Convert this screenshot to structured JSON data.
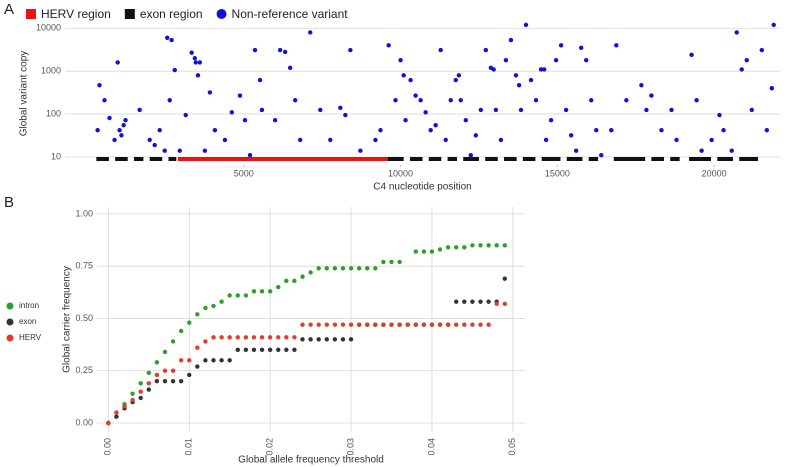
{
  "chart_data": [
    {
      "type": "scatter",
      "panel": "A",
      "xlabel": "C4 nucleotide position",
      "ylabel": "Global variant copy",
      "xlim": [
        -700,
        22100
      ],
      "ylim": [
        6.5,
        14000
      ],
      "log_y": true,
      "grid": "y",
      "legend": "top",
      "xticks": [
        5000,
        10000,
        15000,
        20000
      ],
      "yticks": [
        10,
        100,
        1000,
        10000
      ],
      "regions": [
        {
          "name": "HERV region",
          "color": "#ee1111",
          "ranges": [
            [
              2900,
              9600
            ]
          ]
        },
        {
          "name": "exon region",
          "color": "#111111",
          "ranges": [
            [
              300,
              700
            ],
            [
              900,
              1300
            ],
            [
              1500,
              1800
            ],
            [
              2000,
              2400
            ],
            [
              2600,
              2850
            ],
            [
              9600,
              10100
            ],
            [
              10300,
              10700
            ],
            [
              10900,
              11300
            ],
            [
              11500,
              11800
            ],
            [
              12000,
              12500
            ],
            [
              12700,
              13100
            ],
            [
              13300,
              13700
            ],
            [
              13900,
              14300
            ],
            [
              14500,
              15100
            ],
            [
              15300,
              15800
            ],
            [
              16000,
              16300
            ],
            [
              16800,
              17800
            ],
            [
              18000,
              18400
            ],
            [
              18600,
              18900
            ],
            [
              19200,
              19900
            ],
            [
              20100,
              20600
            ],
            [
              20800,
              21400
            ]
          ]
        }
      ],
      "series": [
        {
          "name": "Non-reference variant",
          "color": "#1010dd",
          "x": [
            340,
            400,
            560,
            720,
            980,
            1040,
            1100,
            1170,
            1230,
            880,
            1680,
            2000,
            2160,
            2320,
            2480,
            2560,
            2700,
            2800,
            2640,
            2960,
            3150,
            3340,
            3440,
            3470,
            3600,
            3540,
            3920,
            4080,
            3760,
            4400,
            4620,
            4880,
            5040,
            5200,
            5360,
            5520,
            5580,
            6000,
            6160,
            6320,
            6480,
            6640,
            7120,
            6800,
            7440,
            7760,
            8080,
            8240,
            8400,
            8720,
            9200,
            9360,
            9620,
            9840,
            10000,
            10100,
            10320,
            10160,
            10480,
            10640,
            10800,
            10960,
            11120,
            11280,
            11440,
            11600,
            11760,
            11860,
            11920,
            12080,
            12240,
            12400,
            12560,
            12720,
            12880,
            12970,
            13040,
            13200,
            13360,
            13520,
            13680,
            13780,
            13840,
            14000,
            14160,
            14320,
            14480,
            14580,
            14640,
            14800,
            14960,
            15120,
            15280,
            15440,
            15600,
            15760,
            15920,
            16080,
            16240,
            16400,
            16720,
            16880,
            17200,
            17680,
            17840,
            18000,
            18320,
            18640,
            18800,
            19280,
            19440,
            19600,
            19920,
            20170,
            20300,
            20560,
            20720,
            20880,
            21040,
            21200,
            21520,
            21680,
            21840,
            21900
          ],
          "values": [
            42,
            470,
            210,
            81,
            1600,
            42,
            32,
            55,
            72,
            25,
            125,
            25,
            19,
            42,
            14,
            6000,
            5300,
            1060,
            210,
            14,
            95,
            2700,
            2000,
            1600,
            1600,
            800,
            320,
            42,
            14,
            25,
            110,
            270,
            72,
            11,
            3100,
            620,
            125,
            72,
            3100,
            2800,
            1200,
            210,
            8000,
            25,
            125,
            25,
            140,
            95,
            3100,
            14,
            25,
            42,
            4000,
            210,
            1800,
            800,
            620,
            72,
            270,
            210,
            110,
            42,
            55,
            3100,
            25,
            210,
            620,
            800,
            210,
            72,
            11,
            32,
            125,
            3100,
            1200,
            1100,
            125,
            25,
            1800,
            5300,
            800,
            470,
            125,
            12000,
            620,
            210,
            1100,
            1100,
            25,
            72,
            1800,
            4000,
            125,
            32,
            14,
            3500,
            1800,
            210,
            42,
            11,
            42,
            4000,
            210,
            470,
            125,
            270,
            42,
            125,
            25,
            2400,
            210,
            14,
            25,
            95,
            42,
            14,
            8000,
            1100,
            1800,
            125,
            3100,
            42,
            400,
            12000
          ]
        }
      ]
    },
    {
      "type": "scatter",
      "panel": "B",
      "xlabel": "Global allele frequency threshold",
      "ylabel": "Global carrier frequency",
      "xlim": [
        -0.0014,
        0.0515
      ],
      "ylim": [
        -0.043,
        1.033
      ],
      "grid": "both",
      "legend": "left",
      "xticks": [
        {
          "value": 0,
          "label": "0.00"
        },
        {
          "value": 0.01,
          "label": "0.01"
        },
        {
          "value": 0.02,
          "label": "0.02"
        },
        {
          "value": 0.03,
          "label": "0.03"
        },
        {
          "value": 0.04,
          "label": "0.04"
        },
        {
          "value": 0.05,
          "label": "0.05"
        }
      ],
      "yticks": [
        {
          "value": 0,
          "label": "0.00"
        },
        {
          "value": 0.25,
          "label": "0.25"
        },
        {
          "value": 0.5,
          "label": "0.50"
        },
        {
          "value": 0.75,
          "label": "0.75"
        },
        {
          "value": 1,
          "label": "1.00"
        }
      ],
      "x": [
        0,
        0.001,
        0.002,
        0.003,
        0.004,
        0.005,
        0.006,
        0.007,
        0.008,
        0.009,
        0.01,
        0.011,
        0.012,
        0.013,
        0.014,
        0.015,
        0.016,
        0.017,
        0.018,
        0.019,
        0.02,
        0.021,
        0.022,
        0.023,
        0.024,
        0.025,
        0.026,
        0.027,
        0.028,
        0.029,
        0.03,
        0.031,
        0.032,
        0.033,
        0.034,
        0.035,
        0.036,
        0.037,
        0.038,
        0.039,
        0.04,
        0.041,
        0.042,
        0.043,
        0.044,
        0.045,
        0.046,
        0.047,
        0.048,
        0.049
      ],
      "series": [
        {
          "name": "intron",
          "color": "#2ca02c",
          "values": [
            0,
            0.05,
            0.09,
            0.14,
            0.19,
            0.24,
            0.29,
            0.34,
            0.39,
            0.44,
            0.48,
            0.52,
            0.55,
            0.56,
            0.58,
            0.61,
            0.61,
            0.61,
            0.63,
            0.63,
            0.63,
            0.65,
            0.68,
            0.68,
            0.7,
            0.72,
            0.74,
            0.74,
            0.74,
            0.74,
            0.74,
            0.74,
            0.74,
            0.74,
            0.77,
            0.77,
            0.77,
            null,
            0.82,
            0.82,
            0.82,
            0.83,
            0.84,
            0.84,
            0.84,
            0.85,
            0.85,
            0.85,
            0.85,
            0.85
          ]
        },
        {
          "name": "exon",
          "color": "#333333",
          "values": [
            0,
            0.03,
            0.07,
            0.1,
            0.12,
            0.16,
            0.2,
            0.2,
            0.2,
            0.2,
            0.23,
            0.27,
            0.3,
            0.3,
            0.3,
            0.3,
            0.35,
            0.35,
            0.35,
            0.35,
            0.35,
            0.35,
            0.35,
            0.35,
            0.4,
            0.4,
            0.4,
            0.4,
            0.4,
            0.4,
            0.4,
            0.47,
            0.47,
            0.47,
            0.47,
            0.47,
            0.47,
            0.47,
            0.47,
            0.47,
            0.47,
            0.47,
            0.47,
            0.58,
            0.58,
            0.58,
            0.58,
            0.58,
            0.58,
            0.69
          ]
        },
        {
          "name": "HERV",
          "color": "#e8392b",
          "values": [
            0,
            0.05,
            0.08,
            0.11,
            0.15,
            0.19,
            0.23,
            0.25,
            0.25,
            0.3,
            0.3,
            0.36,
            0.39,
            0.41,
            0.41,
            0.41,
            0.41,
            0.41,
            0.41,
            0.41,
            0.41,
            0.41,
            0.41,
            0.41,
            0.47,
            0.47,
            0.47,
            0.47,
            0.47,
            0.47,
            0.47,
            0.47,
            0.47,
            0.47,
            0.47,
            0.47,
            0.47,
            0.47,
            0.47,
            0.47,
            0.47,
            0.47,
            0.47,
            0.47,
            0.47,
            0.47,
            0.47,
            0.47,
            0.57,
            0.57
          ]
        }
      ]
    }
  ]
}
